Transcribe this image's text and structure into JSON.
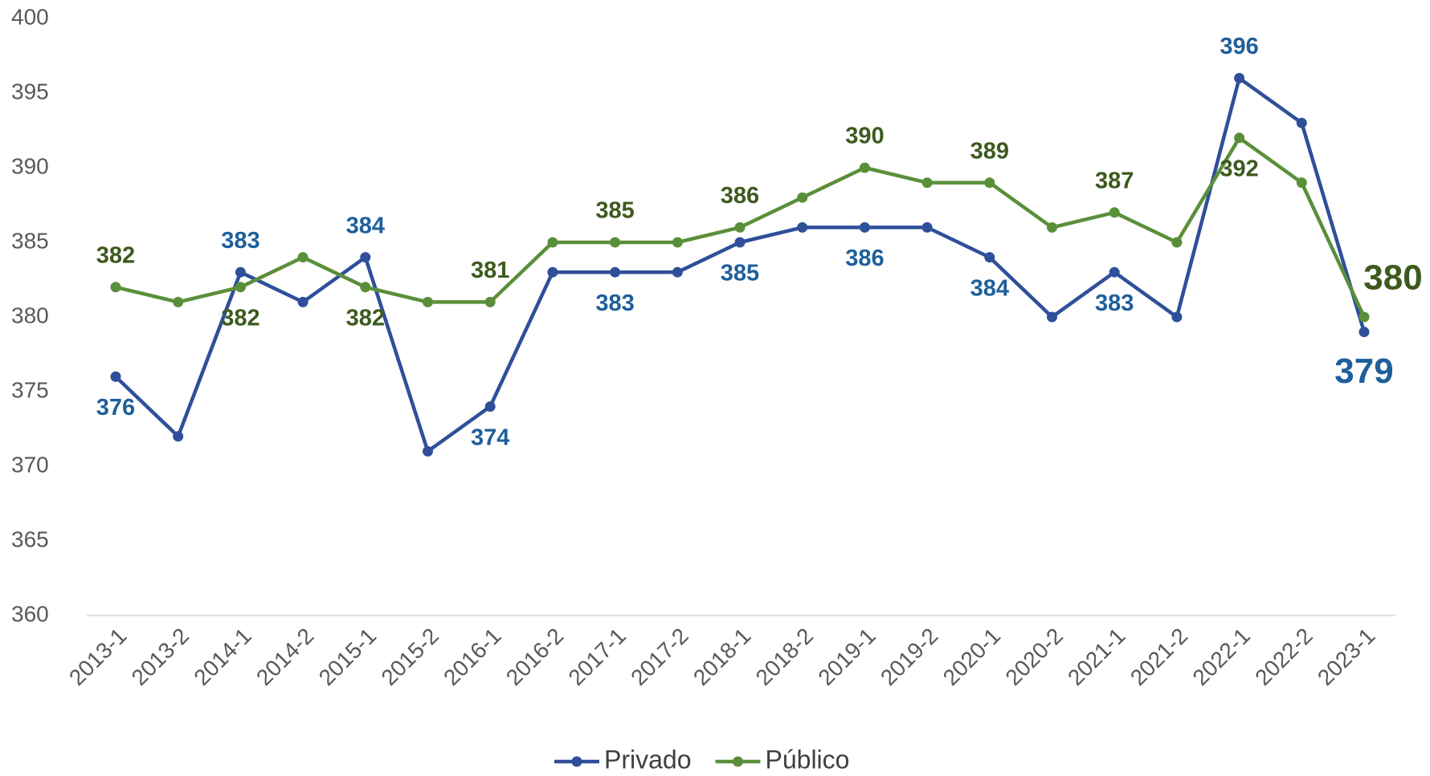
{
  "chart_data": {
    "type": "line",
    "categories": [
      "2013-1",
      "2013-2",
      "2014-1",
      "2014-2",
      "2015-1",
      "2015-2",
      "2016-1",
      "2016-2",
      "2017-1",
      "2017-2",
      "2018-1",
      "2018-2",
      "2019-1",
      "2019-2",
      "2020-1",
      "2020-2",
      "2021-1",
      "2021-2",
      "2022-1",
      "2022-2",
      "2023-1"
    ],
    "series": [
      {
        "name": "Privado",
        "color": "#2f4f9a",
        "label_color": "#1f5f9c",
        "values": [
          376,
          372,
          383,
          381,
          384,
          371,
          374,
          383,
          383,
          383,
          385,
          386,
          386,
          386,
          384,
          380,
          383,
          380,
          396,
          393,
          379
        ],
        "value_labels": [
          "376",
          null,
          "383",
          null,
          "384",
          null,
          "374",
          null,
          "383",
          null,
          "385",
          null,
          "386",
          null,
          "384",
          null,
          "383",
          null,
          "396",
          null,
          "379"
        ]
      },
      {
        "name": "Público",
        "color": "#5a8f3a",
        "label_color": "#3d5a1e",
        "values": [
          382,
          381,
          382,
          384,
          382,
          381,
          381,
          385,
          385,
          385,
          386,
          388,
          390,
          389,
          389,
          386,
          387,
          385,
          392,
          389,
          380
        ],
        "value_labels": [
          "382",
          null,
          "382",
          null,
          "382",
          null,
          "381",
          null,
          "385",
          null,
          "386",
          null,
          "390",
          null,
          "389",
          null,
          "387",
          null,
          "392",
          null,
          "380"
        ]
      }
    ],
    "ylim": [
      360,
      400
    ],
    "yticks": [
      360,
      365,
      370,
      375,
      380,
      385,
      390,
      395,
      400
    ],
    "legend": "bottom"
  }
}
